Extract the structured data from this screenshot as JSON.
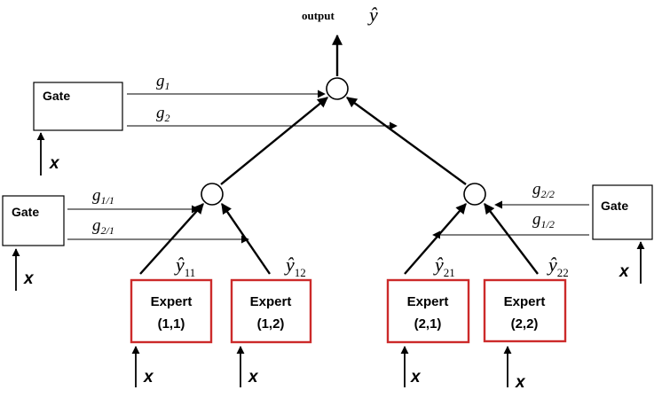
{
  "output": {
    "label": "output",
    "symbol": "ŷ"
  },
  "gates": {
    "top": {
      "label": "Gate",
      "input": "x",
      "signals": [
        {
          "main": "g",
          "sub": "1"
        },
        {
          "main": "g",
          "sub": "2"
        }
      ]
    },
    "left": {
      "label": "Gate",
      "input": "x",
      "signals": [
        {
          "main": "g",
          "sub": "1/1"
        },
        {
          "main": "g",
          "sub": "2/1"
        }
      ]
    },
    "right": {
      "label": "Gate",
      "input": "x",
      "signals": [
        {
          "main": "g",
          "sub": "2/2"
        },
        {
          "main": "g",
          "sub": "1/2"
        }
      ]
    }
  },
  "experts": [
    {
      "title": "Expert",
      "index": "(1,1)",
      "input": "x",
      "output": {
        "main": "ŷ",
        "sub": "11"
      }
    },
    {
      "title": "Expert",
      "index": "(1,2)",
      "input": "x",
      "output": {
        "main": "ŷ",
        "sub": "12"
      }
    },
    {
      "title": "Expert",
      "index": "(2,1)",
      "input": "x",
      "output": {
        "main": "ŷ",
        "sub": "21"
      }
    },
    {
      "title": "Expert",
      "index": "(2,2)",
      "input": "x",
      "output": {
        "main": "ŷ",
        "sub": "22"
      }
    }
  ]
}
